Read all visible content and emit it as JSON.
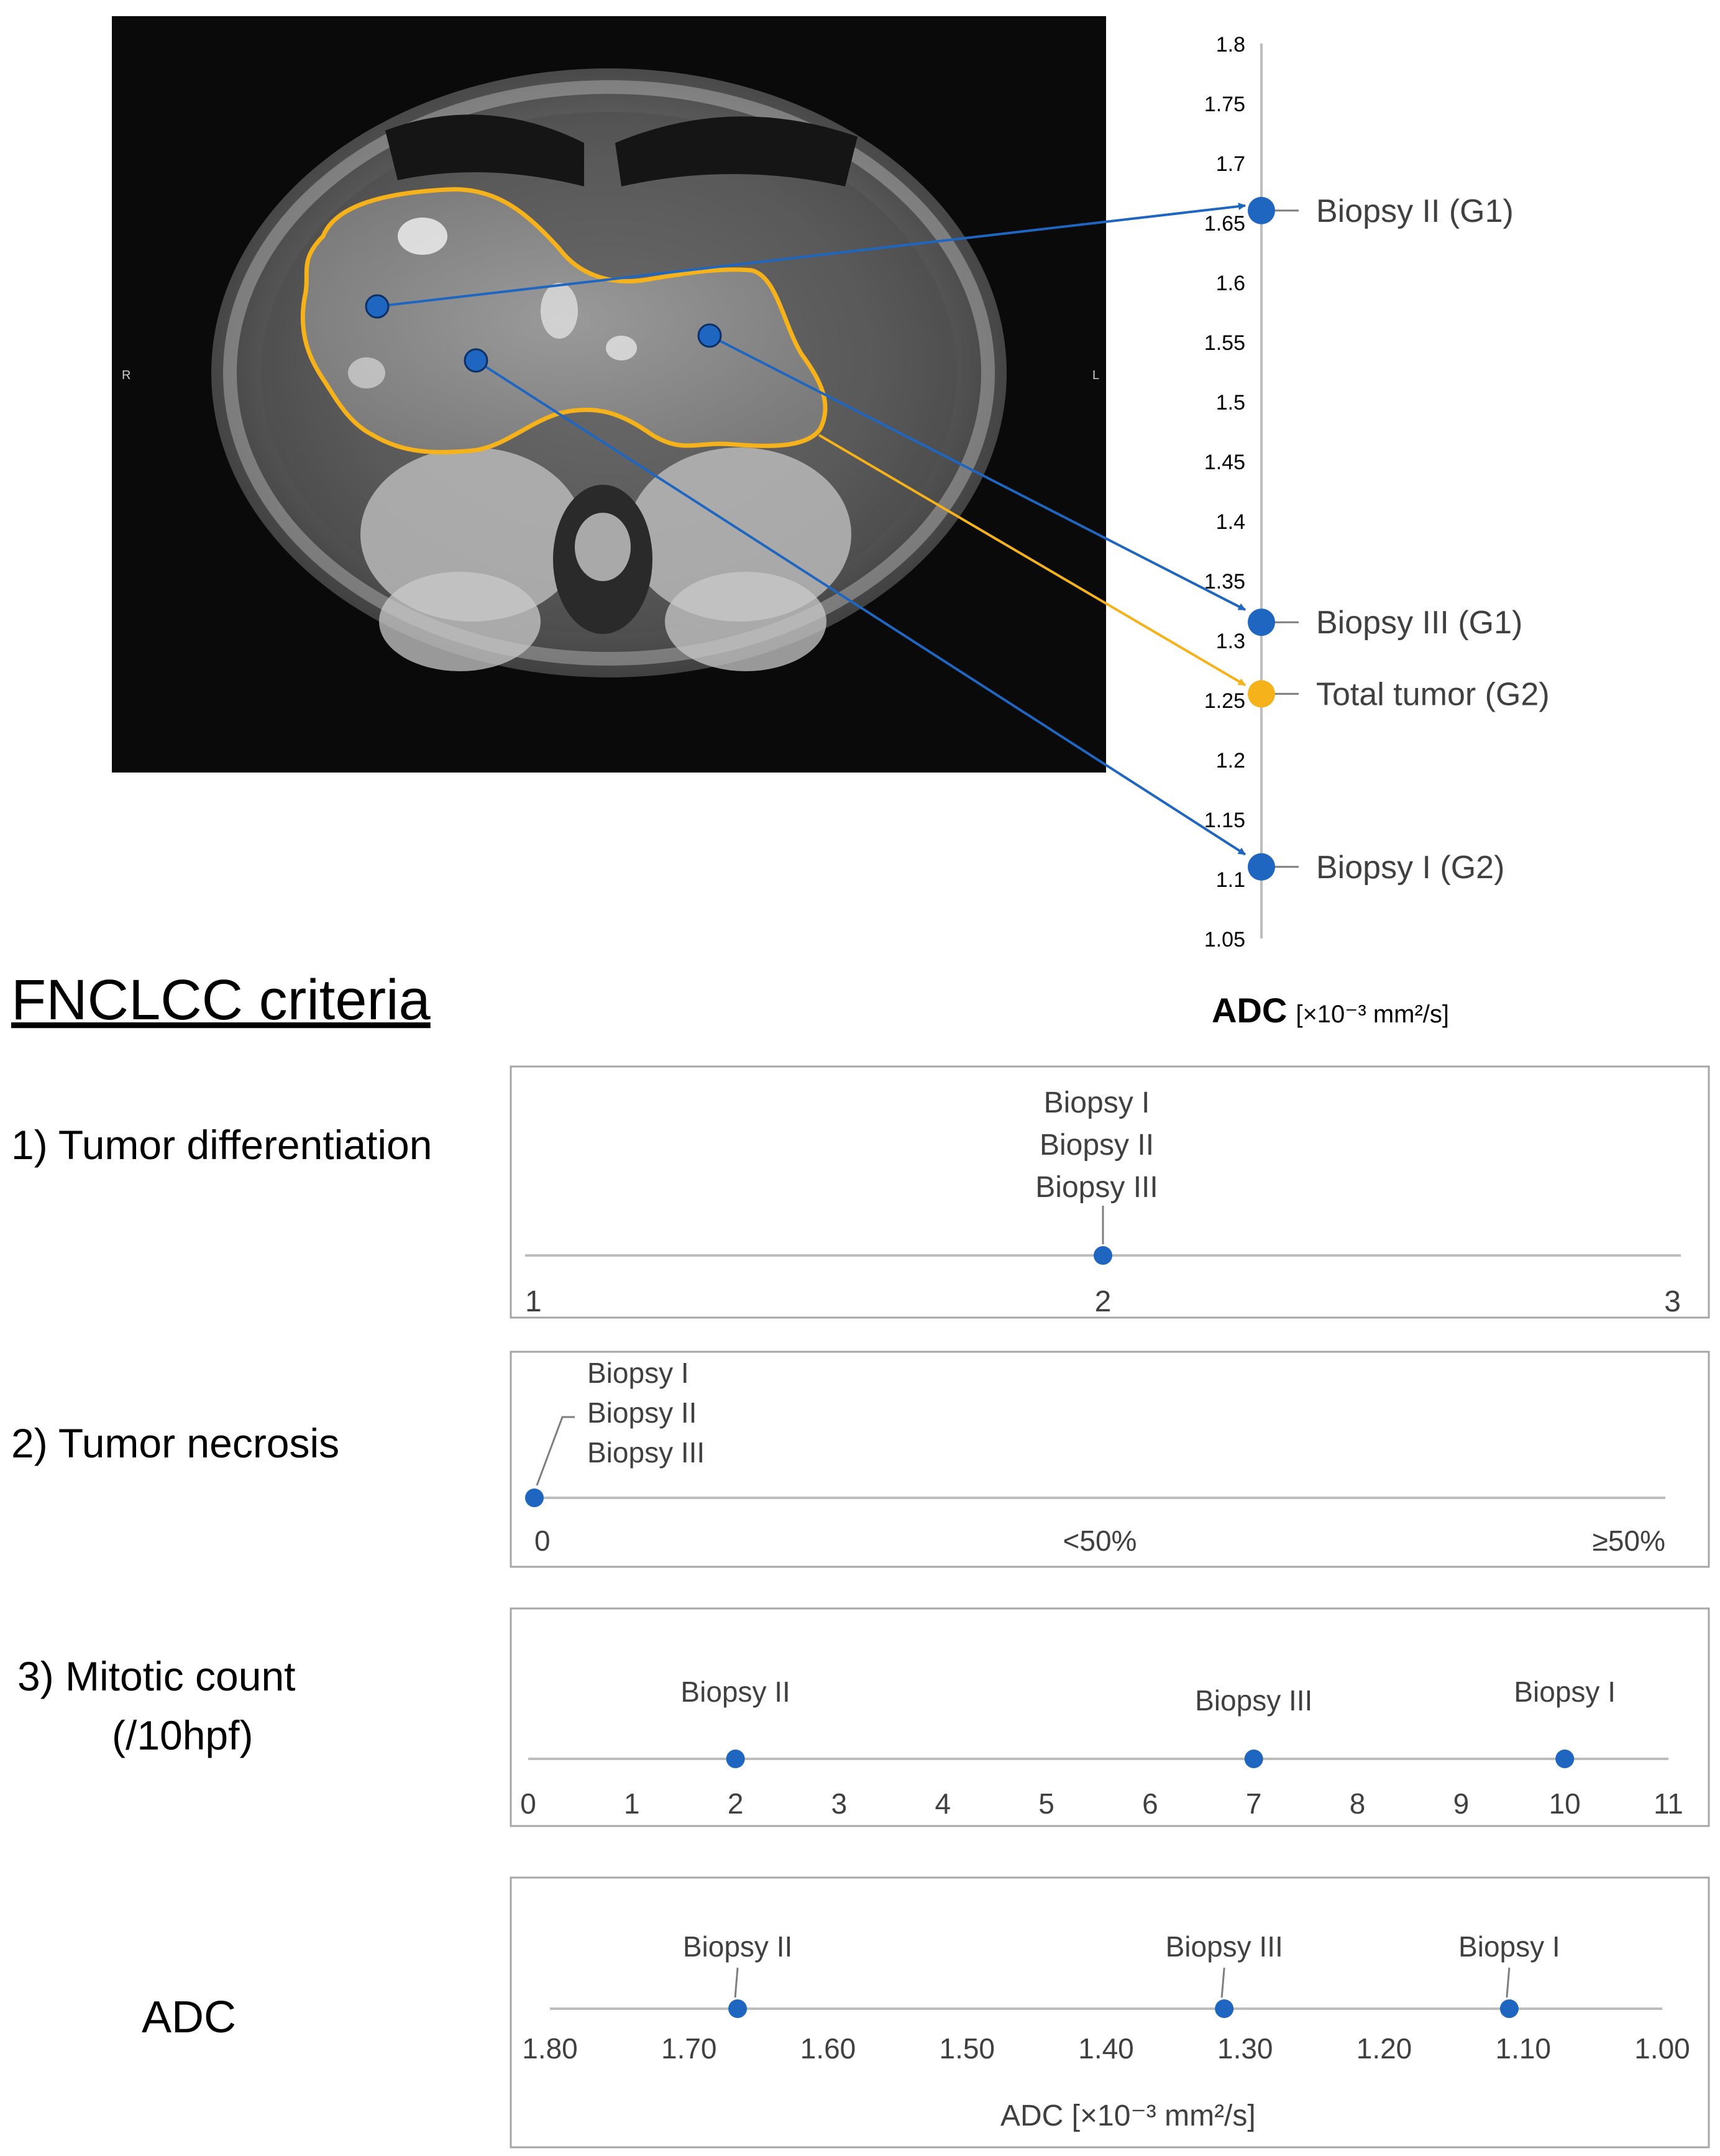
{
  "colors": {
    "blue": "#1f66c0",
    "orange": "#f5b21a",
    "axis": "#bdbdbd",
    "box": "#a6a6a6",
    "text": "#404040",
    "mri_bg": "#0a0a0a"
  },
  "mri": {
    "side_left": "R",
    "side_right": "L",
    "roi_color": "orange"
  },
  "chart_data": [
    {
      "id": "adc_vertical",
      "type": "scatter",
      "orientation": "vertical",
      "axis_label_main": "ADC",
      "axis_label_unit": "[×10⁻³ mm²/s]",
      "ylim": [
        1.05,
        1.8
      ],
      "ticks": [
        "1.8",
        "1.75",
        "1.7",
        "1.65",
        "1.6",
        "1.55",
        "1.5",
        "1.45",
        "1.4",
        "1.35",
        "1.3",
        "1.25",
        "1.2",
        "1.15",
        "1.1",
        "1.05"
      ],
      "tick_values": [
        1.8,
        1.75,
        1.7,
        1.65,
        1.6,
        1.55,
        1.5,
        1.45,
        1.4,
        1.35,
        1.3,
        1.25,
        1.2,
        1.15,
        1.1,
        1.05
      ],
      "points": [
        {
          "label": "Biopsy II (G1)",
          "value": 1.66,
          "color": "blue"
        },
        {
          "label": "Biopsy III (G1)",
          "value": 1.315,
          "color": "blue"
        },
        {
          "label": "Total tumor (G2)",
          "value": 1.255,
          "color": "orange"
        },
        {
          "label": "Biopsy I (G2)",
          "value": 1.11,
          "color": "blue"
        }
      ]
    },
    {
      "id": "tumor_differentiation",
      "type": "scatter",
      "row_label": "1) Tumor differentiation",
      "xlim": [
        1,
        3
      ],
      "ticks": [
        {
          "label": "1",
          "value": 1
        },
        {
          "label": "2",
          "value": 2
        },
        {
          "label": "3",
          "value": 3
        }
      ],
      "points": [
        {
          "value": 2,
          "labels": [
            "Biopsy I",
            "Biopsy II",
            "Biopsy III"
          ]
        }
      ]
    },
    {
      "id": "tumor_necrosis",
      "type": "scatter",
      "row_label": "2) Tumor necrosis",
      "xlim": [
        0,
        2
      ],
      "ticks": [
        {
          "label": "0",
          "value": 0
        },
        {
          "label": "<50%",
          "value": 1
        },
        {
          "label": "≥50%",
          "value": 2
        }
      ],
      "points": [
        {
          "value": 0,
          "labels": [
            "Biopsy I",
            "Biopsy II",
            "Biopsy III"
          ]
        }
      ]
    },
    {
      "id": "mitotic_count",
      "type": "scatter",
      "row_label_lines": [
        "3) Mitotic count",
        "(/10hpf)"
      ],
      "xlim": [
        0,
        11
      ],
      "ticks": [
        {
          "label": "0",
          "value": 0
        },
        {
          "label": "1",
          "value": 1
        },
        {
          "label": "2",
          "value": 2
        },
        {
          "label": "3",
          "value": 3
        },
        {
          "label": "4",
          "value": 4
        },
        {
          "label": "5",
          "value": 5
        },
        {
          "label": "6",
          "value": 6
        },
        {
          "label": "7",
          "value": 7
        },
        {
          "label": "8",
          "value": 8
        },
        {
          "label": "9",
          "value": 9
        },
        {
          "label": "10",
          "value": 10
        },
        {
          "label": "11",
          "value": 11
        }
      ],
      "points": [
        {
          "value": 2,
          "labels": [
            "Biopsy II"
          ]
        },
        {
          "value": 7,
          "labels": [
            "Biopsy III"
          ]
        },
        {
          "value": 10,
          "labels": [
            "Biopsy I"
          ]
        }
      ]
    },
    {
      "id": "adc_horizontal",
      "type": "scatter",
      "row_label": "ADC",
      "xlabel": "ADC [×10⁻³ mm²/s]",
      "xlim": [
        1.8,
        1.0
      ],
      "reversed": true,
      "ticks": [
        {
          "label": "1.80",
          "value": 1.8
        },
        {
          "label": "1.70",
          "value": 1.7
        },
        {
          "label": "1.60",
          "value": 1.6
        },
        {
          "label": "1.50",
          "value": 1.5
        },
        {
          "label": "1.40",
          "value": 1.4
        },
        {
          "label": "1.30",
          "value": 1.3
        },
        {
          "label": "1.20",
          "value": 1.2
        },
        {
          "label": "1.10",
          "value": 1.1
        },
        {
          "label": "1.00",
          "value": 1.0
        }
      ],
      "points": [
        {
          "value": 1.665,
          "labels": [
            "Biopsy II"
          ]
        },
        {
          "value": 1.315,
          "labels": [
            "Biopsy III"
          ]
        },
        {
          "value": 1.11,
          "labels": [
            "Biopsy I"
          ]
        }
      ]
    }
  ],
  "section_title": "FNCLCC criteria"
}
